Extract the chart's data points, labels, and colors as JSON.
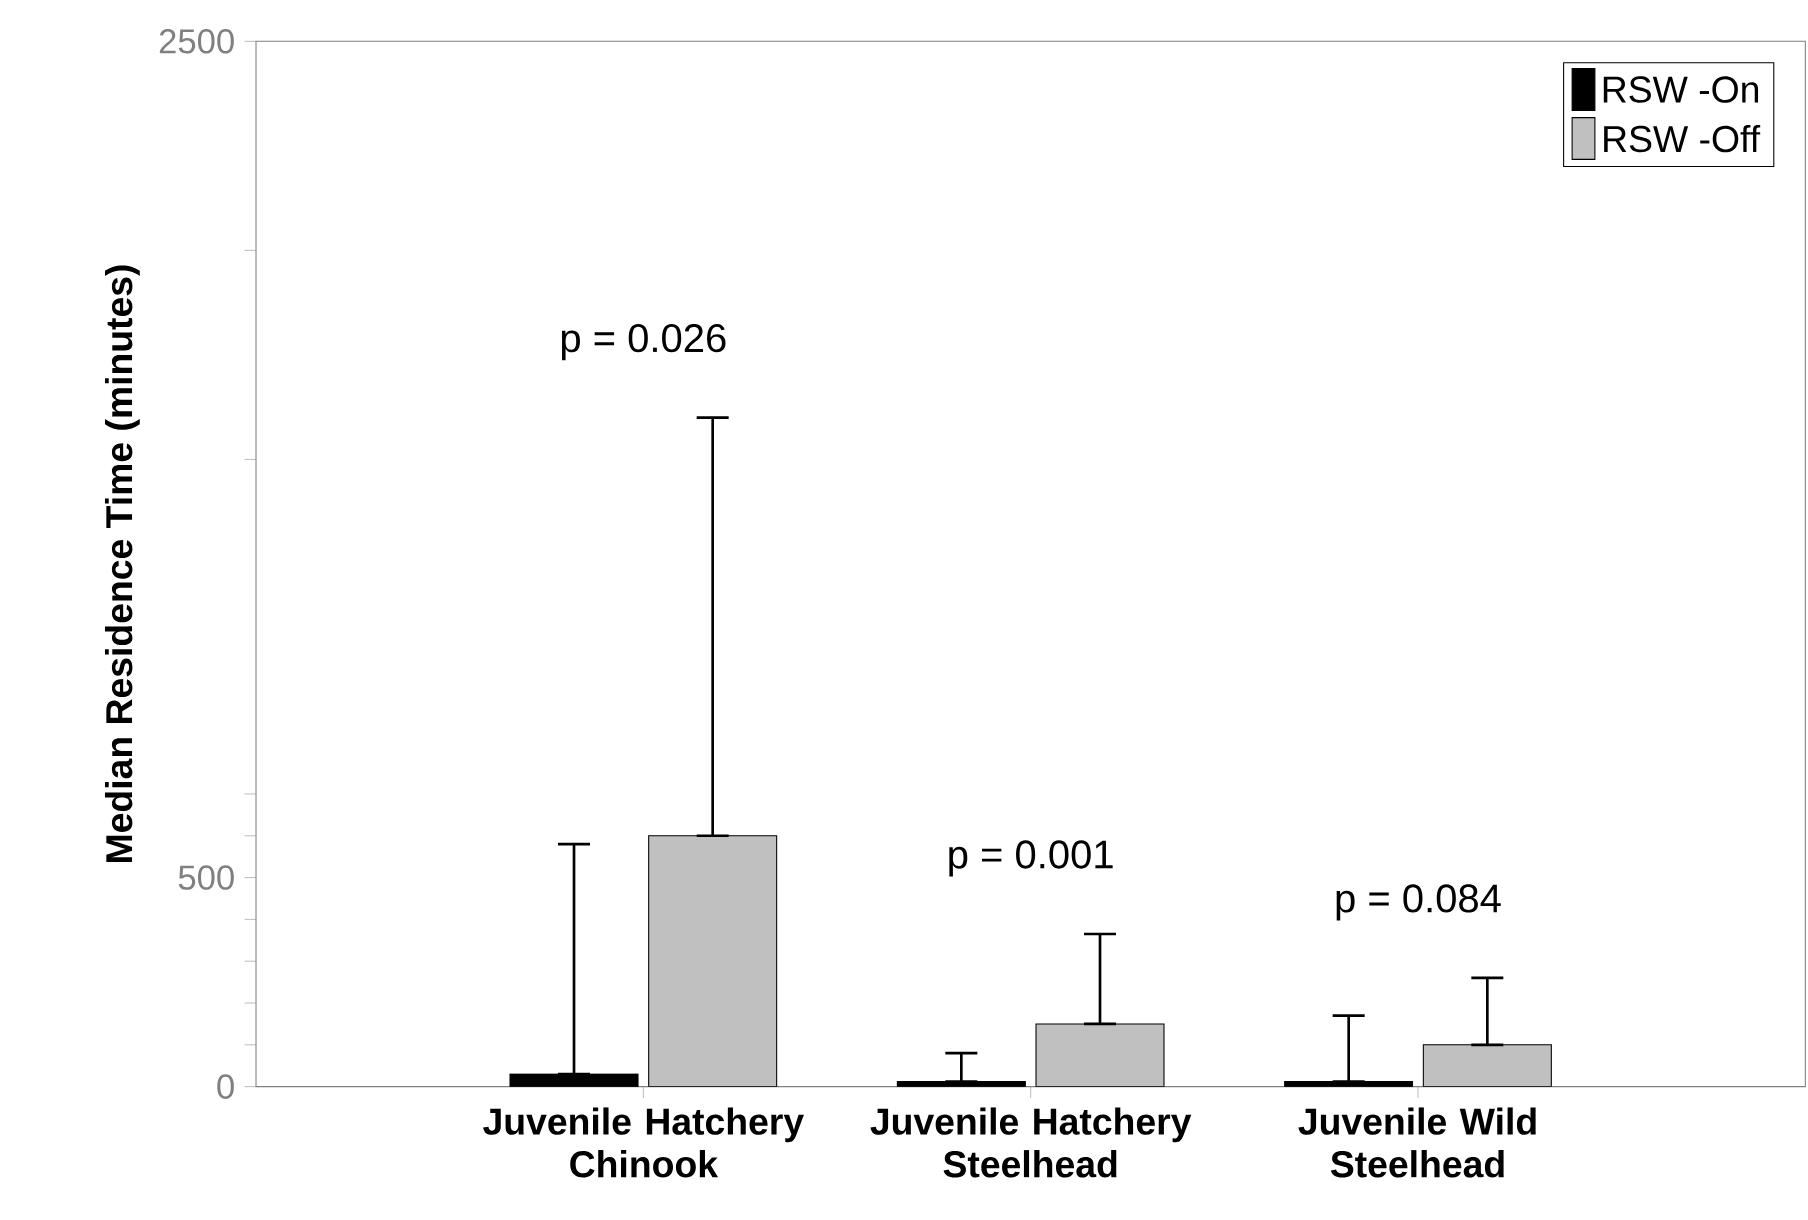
{
  "chart_data": {
    "type": "bar",
    "ylabel": "Median Residence Time (minutes)",
    "categories": [
      "Juvenile Hatchery Chinook",
      "Juvenile Hatchery Steelhead",
      "Juvenile Wild Steelhead"
    ],
    "series": [
      {
        "name": "RSW -On",
        "color": "#000000",
        "values": [
          30,
          12,
          12
        ],
        "errors": [
          [
            30,
            580
          ],
          [
            12,
            80
          ],
          [
            12,
            170
          ]
        ]
      },
      {
        "name": "RSW -Off",
        "color": "#c0c0c0",
        "values": [
          600,
          150,
          100
        ],
        "errors": [
          [
            600,
            1600
          ],
          [
            150,
            365
          ],
          [
            100,
            260
          ]
        ]
      }
    ],
    "ylim": [
      0,
      2500
    ],
    "yticks": [
      0,
      {
        "value": 100,
        "label": null
      },
      {
        "value": 200,
        "label": null
      },
      {
        "value": 300,
        "label": null
      },
      {
        "value": 400,
        "label": null
      },
      500,
      {
        "value": 600,
        "label": null
      },
      {
        "value": 700,
        "label": null
      },
      {
        "value": 1500,
        "label": null
      },
      {
        "value": 2000,
        "label": null
      },
      2500
    ],
    "annotations": [
      "p = 0.026",
      "p = 0.001",
      "p = 0.084"
    ],
    "legend": "top right",
    "grid": false
  }
}
